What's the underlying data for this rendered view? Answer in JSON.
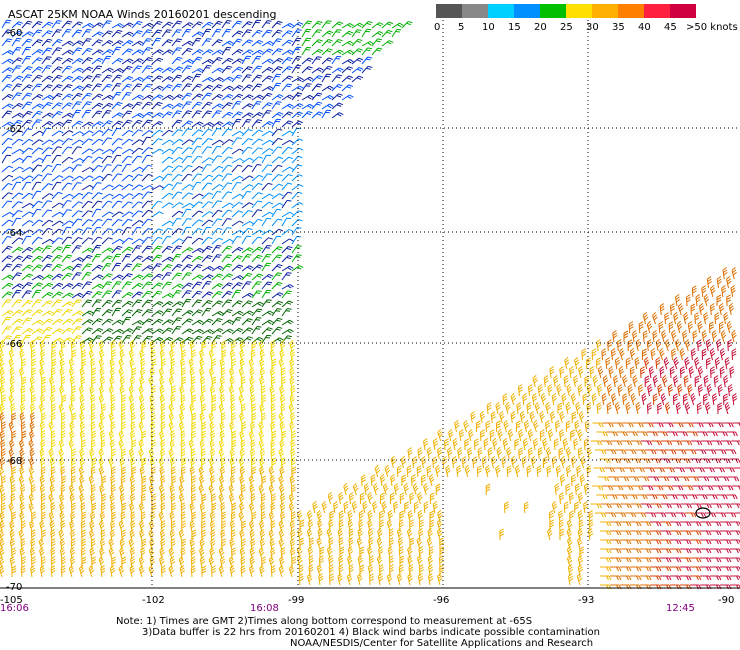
{
  "title": "ASCAT 25KM NOAA Winds 20160201 descending",
  "legend": {
    "colors": [
      "#555555",
      "#888888",
      "#00a0ff",
      "#0050ff",
      "#00c000",
      "#ffe000",
      "#ffb000",
      "#ff7000",
      "#ff2040",
      "#d00060",
      "#8b4a2b",
      "#c05000",
      "#ff00ff",
      "#9000c0",
      "#5000a0"
    ],
    "labels": [
      "0",
      "5",
      "10",
      "15",
      "20",
      "25",
      "30",
      "35",
      "40",
      "45",
      ">50 knots"
    ]
  },
  "map": {
    "lon_ticks": [
      "-105",
      "-102",
      "-99",
      "-96",
      "-93",
      "-90"
    ],
    "lat_ticks": [
      "-60",
      "-62",
      "-64",
      "-66",
      "-68",
      "-70"
    ],
    "time_labels": [
      {
        "text": "16:06",
        "lon": -105
      },
      {
        "text": "16:08",
        "lon": -99.7
      },
      {
        "text": "12:45",
        "lon": -91.3
      }
    ],
    "barb_colors": {
      "dark_blue": "#0a1ea0",
      "blue": "#0050ff",
      "light_blue": "#0090ff",
      "green": "#00b000",
      "dark_green": "#006400",
      "yellow": "#f0d800",
      "orange_yellow": "#f0b000",
      "orange": "#e07000",
      "red_orange": "#d84000",
      "red": "#c8103a"
    }
  },
  "notes": {
    "line1": "Note: 1) Times are GMT 2)Times along bottom correspond to measurement at -65S",
    "line2": "3)Data buffer is 22 hrs from 20160201 4) Black wind barbs indicate possible contamination",
    "line3": "NOAA/NESDIS/Center for Satellite Applications and Research"
  }
}
